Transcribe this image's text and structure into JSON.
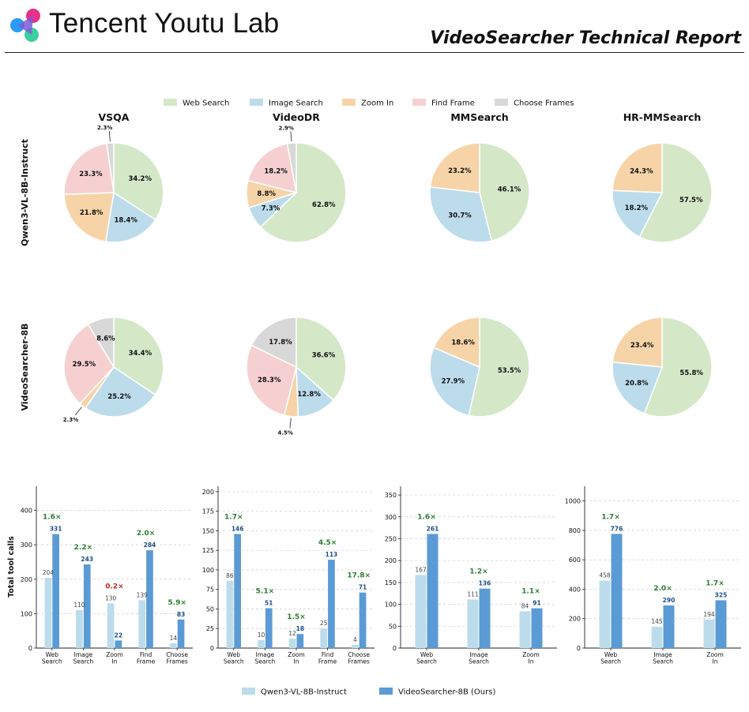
{
  "header": {
    "brand": "Tencent Youtu Lab",
    "report_title": "VideoSearcher Technical Report",
    "logo_icon": "youtu-logo-icon"
  },
  "colors": {
    "web_search": "#d4e8c8",
    "image_search": "#bcdcec",
    "zoom_in": "#f6d4a8",
    "find_frame": "#f6d0d0",
    "choose_frames": "#d8d8d8",
    "bar_base": "#bcdcec",
    "bar_ours": "#5b9bd5",
    "ratio_up": "#2e7d32",
    "ratio_down": "#c62828",
    "ours_label": "#1f4e8a"
  },
  "chart_data": [
    {
      "type": "pie",
      "legend": [
        "Web Search",
        "Image Search",
        "Zoom In",
        "Find Frame",
        "Choose Frames"
      ],
      "legend_placement": "top-center",
      "row_labels": [
        "Qwen3-VL-8B-Instruct",
        "VideoSearcher-8B"
      ],
      "column_titles": [
        "VSQA",
        "VideoDR",
        "MMSearch",
        "HR-MMSearch"
      ],
      "pies": [
        {
          "row": "Qwen3-VL-8B-Instruct",
          "column": "VSQA",
          "slices": [
            {
              "category": "Web Search",
              "value": 34.2,
              "label": "34.2%"
            },
            {
              "category": "Image Search",
              "value": 18.4,
              "label": "18.4%"
            },
            {
              "category": "Zoom In",
              "value": 21.8,
              "label": "21.8%"
            },
            {
              "category": "Find Frame",
              "value": 23.3,
              "label": "23.3%"
            },
            {
              "category": "Choose Frames",
              "value": 2.3,
              "label": "2.3%"
            }
          ]
        },
        {
          "row": "Qwen3-VL-8B-Instruct",
          "column": "VideoDR",
          "slices": [
            {
              "category": "Web Search",
              "value": 62.8,
              "label": "62.8%"
            },
            {
              "category": "Image Search",
              "value": 7.3,
              "label": "7.3%"
            },
            {
              "category": "Zoom In",
              "value": 8.8,
              "label": "8.8%"
            },
            {
              "category": "Find Frame",
              "value": 18.2,
              "label": "18.2%"
            },
            {
              "category": "Choose Frames",
              "value": 2.9,
              "label": "2.9%"
            }
          ]
        },
        {
          "row": "Qwen3-VL-8B-Instruct",
          "column": "MMSearch",
          "slices": [
            {
              "category": "Web Search",
              "value": 46.1,
              "label": "46.1%"
            },
            {
              "category": "Image Search",
              "value": 30.7,
              "label": "30.7%"
            },
            {
              "category": "Zoom In",
              "value": 23.2,
              "label": "23.2%"
            }
          ]
        },
        {
          "row": "Qwen3-VL-8B-Instruct",
          "column": "HR-MMSearch",
          "slices": [
            {
              "category": "Web Search",
              "value": 57.5,
              "label": "57.5%"
            },
            {
              "category": "Image Search",
              "value": 18.2,
              "label": "18.2%"
            },
            {
              "category": "Zoom In",
              "value": 24.3,
              "label": "24.3%"
            }
          ]
        },
        {
          "row": "VideoSearcher-8B",
          "column": "VSQA",
          "slices": [
            {
              "category": "Web Search",
              "value": 34.4,
              "label": "34.4%"
            },
            {
              "category": "Image Search",
              "value": 25.2,
              "label": "25.2%"
            },
            {
              "category": "Zoom In",
              "value": 2.3,
              "label": "2.3%"
            },
            {
              "category": "Find Frame",
              "value": 29.5,
              "label": "29.5%"
            },
            {
              "category": "Choose Frames",
              "value": 8.6,
              "label": "8.6%"
            }
          ]
        },
        {
          "row": "VideoSearcher-8B",
          "column": "VideoDR",
          "slices": [
            {
              "category": "Web Search",
              "value": 36.6,
              "label": "36.6%"
            },
            {
              "category": "Image Search",
              "value": 12.8,
              "label": "12.8%"
            },
            {
              "category": "Zoom In",
              "value": 4.5,
              "label": "4.5%"
            },
            {
              "category": "Find Frame",
              "value": 28.3,
              "label": "28.3%"
            },
            {
              "category": "Choose Frames",
              "value": 17.8,
              "label": "17.8%"
            }
          ]
        },
        {
          "row": "VideoSearcher-8B",
          "column": "MMSearch",
          "slices": [
            {
              "category": "Web Search",
              "value": 53.5,
              "label": "53.5%"
            },
            {
              "category": "Image Search",
              "value": 27.9,
              "label": "27.9%"
            },
            {
              "category": "Zoom In",
              "value": 18.6,
              "label": "18.6%"
            }
          ]
        },
        {
          "row": "VideoSearcher-8B",
          "column": "HR-MMSearch",
          "slices": [
            {
              "category": "Web Search",
              "value": 55.8,
              "label": "55.8%"
            },
            {
              "category": "Image Search",
              "value": 20.8,
              "label": "20.8%"
            },
            {
              "category": "Zoom In",
              "value": 23.4,
              "label": "23.4%"
            }
          ]
        }
      ]
    },
    {
      "type": "bar",
      "ylabel": "Total tool calls",
      "series_names": [
        "Qwen3-VL-8B-Instruct",
        "VideoSearcher-8B (Ours)"
      ],
      "legend_placement": "bottom-center",
      "grid": true,
      "panels": [
        {
          "categories": [
            "Web Search",
            "Image Search",
            "Zoom In",
            "Find Frame",
            "Choose Frames"
          ],
          "ylim": [
            0,
            470
          ],
          "yticks": [
            0,
            100,
            200,
            300,
            400
          ],
          "base": [
            204,
            110,
            130,
            139,
            14
          ],
          "ours": [
            331,
            243,
            22,
            284,
            83
          ],
          "ratios": [
            "1.6×",
            "2.2×",
            "0.2×",
            "2.0×",
            "5.9×"
          ]
        },
        {
          "categories": [
            "Web Search",
            "Image Search",
            "Zoom In",
            "Find Frame",
            "Choose Frames"
          ],
          "ylim": [
            0,
            207
          ],
          "yticks": [
            0,
            25,
            50,
            75,
            100,
            125,
            150,
            175,
            200
          ],
          "base": [
            86,
            10,
            12,
            25,
            4
          ],
          "ours": [
            146,
            51,
            18,
            113,
            71
          ],
          "ratios": [
            "1.7×",
            "5.1×",
            "1.5×",
            "4.5×",
            "17.8×"
          ]
        },
        {
          "categories": [
            "Web Search",
            "Image Search",
            "Zoom In"
          ],
          "ylim": [
            0,
            370
          ],
          "yticks": [
            0,
            50,
            100,
            150,
            200,
            250,
            300,
            350
          ],
          "base": [
            167,
            111,
            84
          ],
          "ours": [
            261,
            136,
            91
          ],
          "ratios": [
            "1.6×",
            "1.2×",
            "1.1×"
          ]
        },
        {
          "categories": [
            "Web Search",
            "Image Search",
            "Zoom In"
          ],
          "ylim": [
            0,
            1100
          ],
          "yticks": [
            0,
            200,
            400,
            600,
            800,
            1000
          ],
          "base": [
            458,
            145,
            194
          ],
          "ours": [
            776,
            290,
            325
          ],
          "ratios": [
            "1.7×",
            "2.0×",
            "1.7×"
          ]
        }
      ]
    }
  ]
}
